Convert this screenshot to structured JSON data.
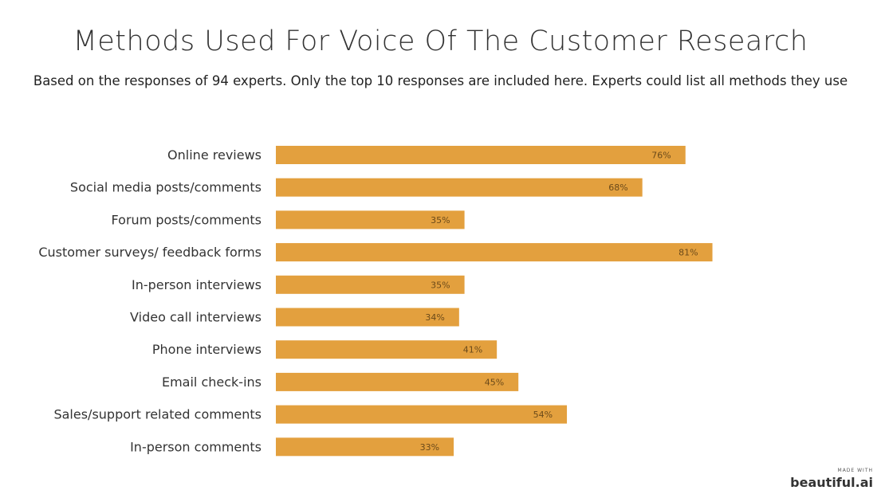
{
  "chart_data": {
    "type": "bar",
    "orientation": "horizontal",
    "title": "Methods Used For Voice Of The Customer Research",
    "subtitle": "Based on the responses of 94 experts. Only the top 10 responses are included here. Experts could list all methods they use",
    "categories": [
      "Online reviews",
      "Social media posts/comments",
      "Forum posts/comments",
      "Customer surveys/ feedback forms",
      "In-person interviews",
      "Video call interviews",
      "Phone interviews",
      "Email check-ins",
      "Sales/support related comments",
      "In-person comments"
    ],
    "values": [
      76,
      68,
      35,
      81,
      35,
      34,
      41,
      45,
      54,
      33
    ],
    "value_labels": [
      "76%",
      "68%",
      "35%",
      "81%",
      "35%",
      "34%",
      "41%",
      "45%",
      "54%",
      "33%"
    ],
    "xlim": [
      0,
      100
    ],
    "grid": false,
    "legend": "none",
    "bar_color": "#E3A03E"
  },
  "branding": {
    "small": "MADE WITH",
    "logo": "beautiful.ai"
  }
}
